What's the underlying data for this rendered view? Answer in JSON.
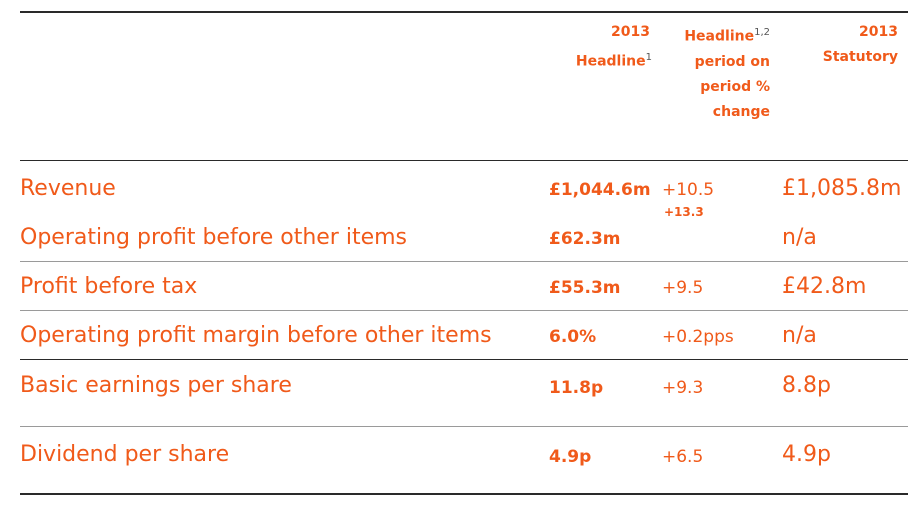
{
  "header": {
    "col_headline": {
      "year": "2013",
      "label": "Headline",
      "sup": "1"
    },
    "col_change": {
      "line1": "Headline",
      "sup": "1,2",
      "line2": "period on",
      "line3": "period %",
      "line4": "change"
    },
    "col_statutory": {
      "year": "2013",
      "label": "Statutory"
    }
  },
  "rows": [
    {
      "label": "Revenue",
      "headline": "£1,044.6m",
      "change": "+10.5",
      "change_sub": "+13.3",
      "statutory": "£1,085.8m"
    },
    {
      "label": "Operating profit before other items",
      "headline": "£62.3m",
      "change": "",
      "statutory": "n/a"
    },
    {
      "label": "Profit before tax",
      "headline": "£55.3m",
      "change": "+9.5",
      "statutory": "£42.8m"
    },
    {
      "label": "Operating profit margin before other items",
      "headline": "6.0%",
      "change": "+0.2pps",
      "statutory": "n/a"
    },
    {
      "label": "Basic earnings per share",
      "headline": "11.8p",
      "change": "+9.3",
      "statutory": "8.8p"
    },
    {
      "label": "Dividend per share",
      "headline": "4.9p",
      "change": "+6.5",
      "statutory": "4.9p"
    }
  ]
}
